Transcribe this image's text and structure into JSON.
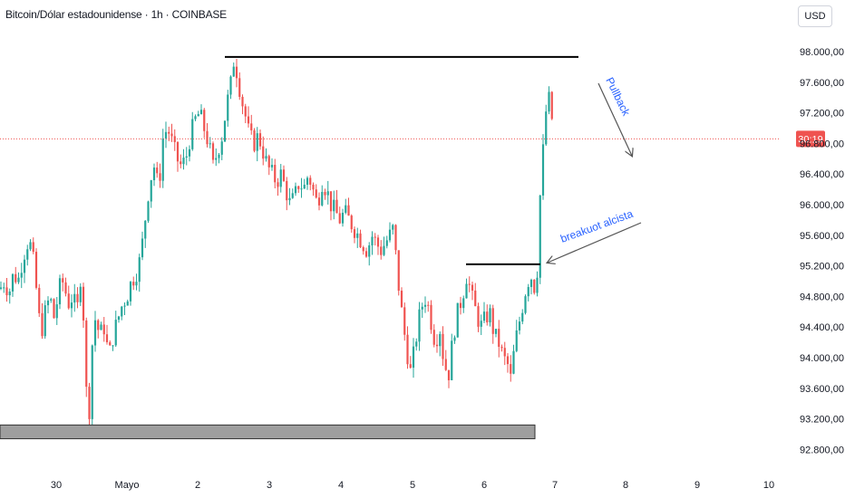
{
  "header": {
    "symbol_title": "Bitcoin/Dólar estadounidense · 1h · COINBASE",
    "currency": "USD"
  },
  "price_badge": "30:19",
  "colors": {
    "up": "#26a69a",
    "down": "#ef5350",
    "line": "#000000",
    "annotation": "#2962ff",
    "zone": "#9e9e9e"
  },
  "chart_data": {
    "type": "candlestick",
    "title": "Bitcoin/Dólar estadounidense · 1h · COINBASE",
    "y_ticks": [
      "98.000,00",
      "97.600,00",
      "97.200,00",
      "96.800,00",
      "96.400,00",
      "96.000,00",
      "95.600,00",
      "95.200,00",
      "94.800,00",
      "94.400,00",
      "94.000,00",
      "93.600,00",
      "93.200,00",
      "92.800,00"
    ],
    "y_tick_values": [
      98000,
      97600,
      97200,
      96800,
      96400,
      96000,
      95600,
      95200,
      94800,
      94400,
      94000,
      93600,
      93200,
      92800
    ],
    "x_ticks": [
      "30",
      "Mayo",
      "2",
      "3",
      "4",
      "5",
      "6",
      "7",
      "8",
      "9",
      "10"
    ],
    "ylim": [
      92700,
      98400
    ],
    "current_price_line": 96860,
    "resistance_level": 97930,
    "breakout_level": 95220,
    "support_zone": [
      92940,
      93120
    ],
    "annotations": [
      {
        "text": "Pullback"
      },
      {
        "text": "breakuot alcista"
      }
    ],
    "path_points": [
      [
        0,
        94900
      ],
      [
        5,
        95000
      ],
      [
        10,
        94850
      ],
      [
        15,
        95100
      ],
      [
        20,
        95000
      ],
      [
        25,
        95300
      ],
      [
        30,
        95500
      ],
      [
        35,
        95450
      ],
      [
        40,
        94900
      ],
      [
        45,
        94300
      ],
      [
        50,
        94600
      ],
      [
        55,
        94800
      ],
      [
        60,
        94500
      ],
      [
        65,
        94900
      ],
      [
        70,
        95000
      ],
      [
        75,
        94700
      ],
      [
        80,
        94800
      ],
      [
        85,
        94600
      ],
      [
        90,
        95200
      ],
      [
        95,
        93600
      ],
      [
        98,
        93100
      ],
      [
        100,
        94000
      ],
      [
        105,
        94500
      ],
      [
        110,
        94300
      ],
      [
        115,
        94400
      ],
      [
        120,
        94000
      ],
      [
        125,
        94300
      ],
      [
        130,
        94500
      ],
      [
        135,
        94700
      ],
      [
        140,
        94800
      ],
      [
        145,
        95000
      ],
      [
        150,
        95100
      ],
      [
        155,
        95300
      ],
      [
        160,
        95800
      ],
      [
        165,
        96300
      ],
      [
        170,
        96500
      ],
      [
        175,
        96200
      ],
      [
        180,
        96900
      ],
      [
        185,
        97000
      ],
      [
        190,
        96800
      ],
      [
        195,
        96600
      ],
      [
        200,
        96500
      ],
      [
        205,
        96600
      ],
      [
        210,
        96900
      ],
      [
        215,
        97100
      ],
      [
        220,
        97200
      ],
      [
        225,
        97000
      ],
      [
        230,
        96800
      ],
      [
        235,
        96500
      ],
      [
        240,
        96700
      ],
      [
        245,
        96900
      ],
      [
        250,
        97300
      ],
      [
        255,
        97600
      ],
      [
        258,
        97900
      ],
      [
        262,
        97700
      ],
      [
        266,
        97400
      ],
      [
        270,
        97200
      ],
      [
        275,
        96900
      ],
      [
        280,
        96800
      ],
      [
        285,
        96900
      ],
      [
        290,
        96700
      ],
      [
        295,
        96500
      ],
      [
        300,
        96400
      ],
      [
        305,
        96300
      ],
      [
        310,
        96400
      ],
      [
        315,
        96200
      ],
      [
        320,
        96000
      ],
      [
        325,
        96100
      ],
      [
        330,
        96300
      ],
      [
        335,
        96200
      ],
      [
        340,
        96400
      ],
      [
        345,
        96200
      ],
      [
        350,
        96000
      ],
      [
        355,
        96300
      ],
      [
        360,
        96200
      ],
      [
        365,
        96000
      ],
      [
        370,
        95900
      ],
      [
        375,
        95800
      ],
      [
        380,
        95900
      ],
      [
        385,
        95800
      ],
      [
        390,
        95700
      ],
      [
        395,
        95600
      ],
      [
        400,
        95500
      ],
      [
        405,
        95400
      ],
      [
        410,
        95600
      ],
      [
        415,
        95500
      ],
      [
        420,
        95400
      ],
      [
        425,
        95500
      ],
      [
        430,
        95600
      ],
      [
        433,
        95700
      ],
      [
        436,
        95400
      ],
      [
        440,
        94900
      ],
      [
        445,
        94400
      ],
      [
        450,
        94000
      ],
      [
        453,
        93800
      ],
      [
        457,
        94100
      ],
      [
        462,
        94500
      ],
      [
        466,
        94700
      ],
      [
        470,
        94800
      ],
      [
        475,
        94500
      ],
      [
        480,
        94200
      ],
      [
        485,
        94400
      ],
      [
        490,
        93900
      ],
      [
        495,
        93800
      ],
      [
        500,
        94300
      ],
      [
        505,
        94600
      ],
      [
        510,
        94800
      ],
      [
        515,
        95100
      ],
      [
        520,
        94800
      ],
      [
        525,
        94600
      ],
      [
        530,
        94400
      ],
      [
        535,
        94500
      ],
      [
        540,
        94600
      ],
      [
        545,
        94300
      ],
      [
        550,
        94200
      ],
      [
        555,
        94000
      ],
      [
        560,
        93900
      ],
      [
        563,
        93700
      ],
      [
        566,
        94000
      ],
      [
        570,
        94300
      ],
      [
        575,
        94600
      ],
      [
        580,
        94900
      ],
      [
        585,
        95100
      ],
      [
        590,
        94900
      ],
      [
        593,
        95200
      ],
      [
        596,
        96200
      ],
      [
        599,
        96700
      ],
      [
        602,
        97200
      ],
      [
        605,
        97400
      ],
      [
        608,
        97200
      ],
      [
        611,
        96900
      ]
    ]
  }
}
